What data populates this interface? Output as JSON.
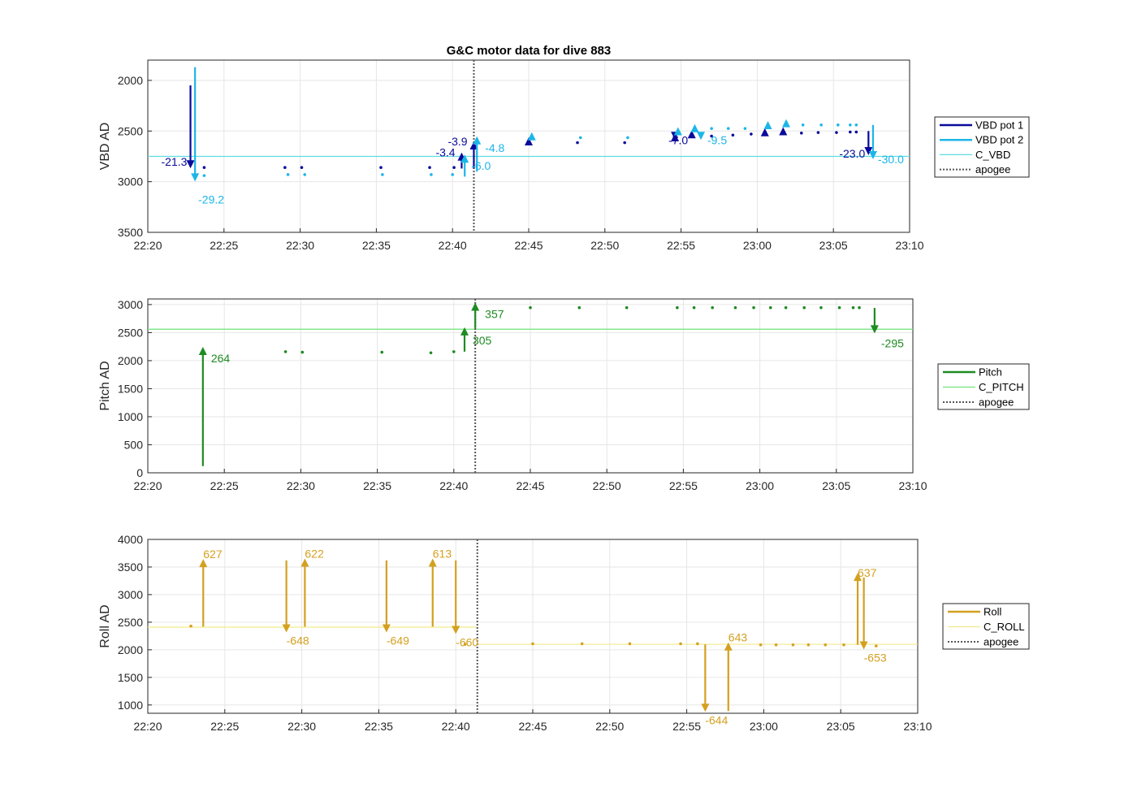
{
  "chart_data": [
    {
      "type": "scatter",
      "title": "G&C motor data for dive 883",
      "ylabel": "VBD AD",
      "ylim": [
        3500,
        1800
      ],
      "y_reversed": true,
      "xlim": [
        "22:20",
        "23:10"
      ],
      "xticks": [
        "22:20",
        "22:25",
        "22:30",
        "22:35",
        "22:40",
        "22:45",
        "22:50",
        "22:55",
        "23:00",
        "23:05",
        "23:10"
      ],
      "yticks": [
        "2000",
        "2500",
        "3000",
        "3500"
      ],
      "grid": true,
      "apogee": "22:41.4",
      "reference_lines": [
        {
          "name": "C_VBD",
          "y": 2750,
          "color": "#5fdde0"
        }
      ],
      "series": [
        {
          "name": "VBD pot 1",
          "color": "#0a0a9b",
          "points": [
            [
              "22:23.7",
              2860
            ],
            [
              "22:29.0",
              2860
            ],
            [
              "22:30.1",
              2860
            ],
            [
              "22:35.3",
              2860
            ],
            [
              "22:38.5",
              2860
            ],
            [
              "22:40.1",
              2860
            ],
            [
              "22:48.2",
              2615
            ],
            [
              "22:51.3",
              2615
            ],
            [
              "22:57.0",
              2550
            ],
            [
              "22:58.4",
              2540
            ],
            [
              "22:59.6",
              2530
            ],
            [
              "23:02.9",
              2520
            ],
            [
              "23:04.0",
              2515
            ],
            [
              "23:05.2",
              2515
            ],
            [
              "23:06.1",
              2510
            ],
            [
              "23:06.5",
              2510
            ]
          ],
          "triangles": [
            [
              "22:45.0",
              2610
            ],
            [
              "22:54.6",
              2570
            ],
            [
              "22:55.7",
              2540
            ],
            [
              "23:00.5",
              2520
            ],
            [
              "23:01.7",
              2510
            ]
          ],
          "moves": [
            {
              "t": "22:22.8",
              "from": 2050,
              "to": 2860,
              "label": "-21.3"
            },
            {
              "t": "22:40.6",
              "from": 2870,
              "to": 2720,
              "label": "-3.4"
            },
            {
              "t": "22:41.4",
              "from": 2870,
              "to": 2610,
              "label": "-3.9"
            },
            {
              "t": "22:54.6",
              "from": 2560,
              "to": 2580,
              "label": "-7.0"
            },
            {
              "t": "23:07.3",
              "from": 2500,
              "to": 2730,
              "label": "-23.0"
            }
          ]
        },
        {
          "name": "VBD pot 2",
          "color": "#1bb6e8",
          "points": [
            [
              "22:23.7",
              2940
            ],
            [
              "22:29.2",
              2930
            ],
            [
              "22:30.3",
              2930
            ],
            [
              "22:35.4",
              2930
            ],
            [
              "22:38.6",
              2930
            ],
            [
              "22:40.0",
              2930
            ],
            [
              "22:48.4",
              2565
            ],
            [
              "22:51.5",
              2565
            ],
            [
              "22:57.0",
              2475
            ],
            [
              "22:58.1",
              2475
            ],
            [
              "22:59.2",
              2475
            ],
            [
              "23:03.0",
              2440
            ],
            [
              "23:04.2",
              2440
            ],
            [
              "23:05.3",
              2440
            ],
            [
              "23:06.1",
              2440
            ],
            [
              "23:06.5",
              2440
            ]
          ],
          "triangles": [
            [
              "22:45.2",
              2560
            ],
            [
              "22:54.8",
              2510
            ],
            [
              "22:55.9",
              2480
            ],
            [
              "23:00.7",
              2450
            ],
            [
              "23:01.9",
              2430
            ]
          ],
          "moves": [
            {
              "t": "22:23.1",
              "from": 1870,
              "to": 2990,
              "label": "-29.2"
            },
            {
              "t": "22:40.8",
              "from": 2950,
              "to": 2740,
              "label": "-6.0"
            },
            {
              "t": "22:41.6",
              "from": 2900,
              "to": 2560,
              "label": "-4.8"
            },
            {
              "t": "22:56.3",
              "from": 2560,
              "to": 2580,
              "label": "-9.5"
            },
            {
              "t": "23:07.6",
              "from": 2440,
              "to": 2770,
              "label": "-30.0"
            }
          ]
        }
      ],
      "legend": {
        "position": "right",
        "entries": [
          "VBD pot 1",
          "VBD pot 2",
          "C_VBD",
          "apogee"
        ]
      }
    },
    {
      "type": "scatter",
      "title": "",
      "ylabel": "Pitch AD",
      "ylim": [
        0,
        3100
      ],
      "xlim": [
        "22:20",
        "23:10"
      ],
      "xticks": [
        "22:20",
        "22:25",
        "22:30",
        "22:35",
        "22:40",
        "22:45",
        "22:50",
        "22:55",
        "23:00",
        "23:05",
        "23:10"
      ],
      "yticks": [
        "0",
        "500",
        "1000",
        "1500",
        "2000",
        "2500",
        "3000"
      ],
      "grid": true,
      "apogee": "22:41.4",
      "reference_lines": [
        {
          "name": "C_PITCH",
          "y": 2560,
          "color": "#6fe37a"
        }
      ],
      "series": [
        {
          "name": "Pitch",
          "color": "#1e8b22",
          "points": [
            [
              "22:29.0",
              2160
            ],
            [
              "22:30.1",
              2150
            ],
            [
              "22:35.3",
              2150
            ],
            [
              "22:38.5",
              2140
            ],
            [
              "22:40.0",
              2160
            ],
            [
              "22:45.0",
              2945
            ],
            [
              "22:48.2",
              2945
            ],
            [
              "22:51.3",
              2945
            ],
            [
              "22:54.6",
              2945
            ],
            [
              "22:55.7",
              2945
            ],
            [
              "22:56.9",
              2945
            ],
            [
              "22:58.4",
              2945
            ],
            [
              "22:59.6",
              2945
            ],
            [
              "23:00.7",
              2945
            ],
            [
              "23:01.7",
              2945
            ],
            [
              "23:02.9",
              2945
            ],
            [
              "23:04.0",
              2945
            ],
            [
              "23:05.2",
              2945
            ],
            [
              "23:06.1",
              2945
            ],
            [
              "23:06.5",
              2945
            ]
          ],
          "moves": [
            {
              "t": "22:23.6",
              "from": 120,
              "to": 2230,
              "label": "264"
            },
            {
              "t": "22:40.7",
              "from": 2160,
              "to": 2580,
              "label": "305"
            },
            {
              "t": "22:41.4",
              "from": 2580,
              "to": 3020,
              "label": "357"
            },
            {
              "t": "23:07.5",
              "from": 2940,
              "to": 2500,
              "label": "-295"
            }
          ]
        }
      ],
      "legend": {
        "position": "right",
        "entries": [
          "Pitch",
          "C_PITCH",
          "apogee"
        ]
      }
    },
    {
      "type": "scatter",
      "title": "",
      "ylabel": "Roll AD",
      "ylim": [
        850,
        4000
      ],
      "xlim": [
        "22:20",
        "23:10"
      ],
      "xticks": [
        "22:20",
        "22:25",
        "22:30",
        "22:35",
        "22:40",
        "22:45",
        "22:50",
        "22:55",
        "23:00",
        "23:05",
        "23:10"
      ],
      "yticks": [
        "1000",
        "1500",
        "2000",
        "2500",
        "3000",
        "3500",
        "4000"
      ],
      "grid": true,
      "apogee": "22:41.4",
      "reference_lines": [
        {
          "name": "C_ROLL",
          "y": 2410,
          "x_from": "22:20",
          "x_to": "22:41.4",
          "color": "#f2e98a"
        },
        {
          "name": "C_ROLL",
          "y": 2100,
          "x_from": "22:41.4",
          "x_to": "23:10",
          "color": "#f2e98a"
        }
      ],
      "series": [
        {
          "name": "Roll",
          "color": "#d4a020",
          "points": [
            [
              "22:22.8",
              2430
            ],
            [
              "22:40.6",
              2100
            ],
            [
              "22:45.0",
              2110
            ],
            [
              "22:48.2",
              2110
            ],
            [
              "22:51.3",
              2110
            ],
            [
              "22:54.6",
              2110
            ],
            [
              "22:55.7",
              2110
            ],
            [
              "22:59.8",
              2090
            ],
            [
              "23:00.8",
              2090
            ],
            [
              "23:01.9",
              2090
            ],
            [
              "23:02.9",
              2090
            ],
            [
              "23:04.0",
              2090
            ],
            [
              "23:05.2",
              2090
            ],
            [
              "23:07.3",
              2070
            ]
          ],
          "moves": [
            {
              "t": "22:23.6",
              "from": 2420,
              "to": 3630,
              "label": "627"
            },
            {
              "t": "22:29.0",
              "from": 3620,
              "to": 2330,
              "label": "-648"
            },
            {
              "t": "22:30.2",
              "from": 2420,
              "to": 3640,
              "label": "622"
            },
            {
              "t": "22:35.5",
              "from": 3620,
              "to": 2330,
              "label": "-649"
            },
            {
              "t": "22:38.5",
              "from": 2420,
              "to": 3640,
              "label": "613"
            },
            {
              "t": "22:40.0",
              "from": 3620,
              "to": 2300,
              "label": "-660"
            },
            {
              "t": "22:56.2",
              "from": 2100,
              "to": 890,
              "label": "-644"
            },
            {
              "t": "22:57.7",
              "from": 890,
              "to": 2120,
              "label": "643"
            },
            {
              "t": "23:06.1",
              "from": 2090,
              "to": 3380,
              "label": "637"
            },
            {
              "t": "23:06.5",
              "from": 3310,
              "to": 2020,
              "label": "-653"
            }
          ]
        }
      ],
      "legend": {
        "position": "right",
        "entries": [
          "Roll",
          "C_ROLL",
          "apogee"
        ]
      }
    }
  ]
}
